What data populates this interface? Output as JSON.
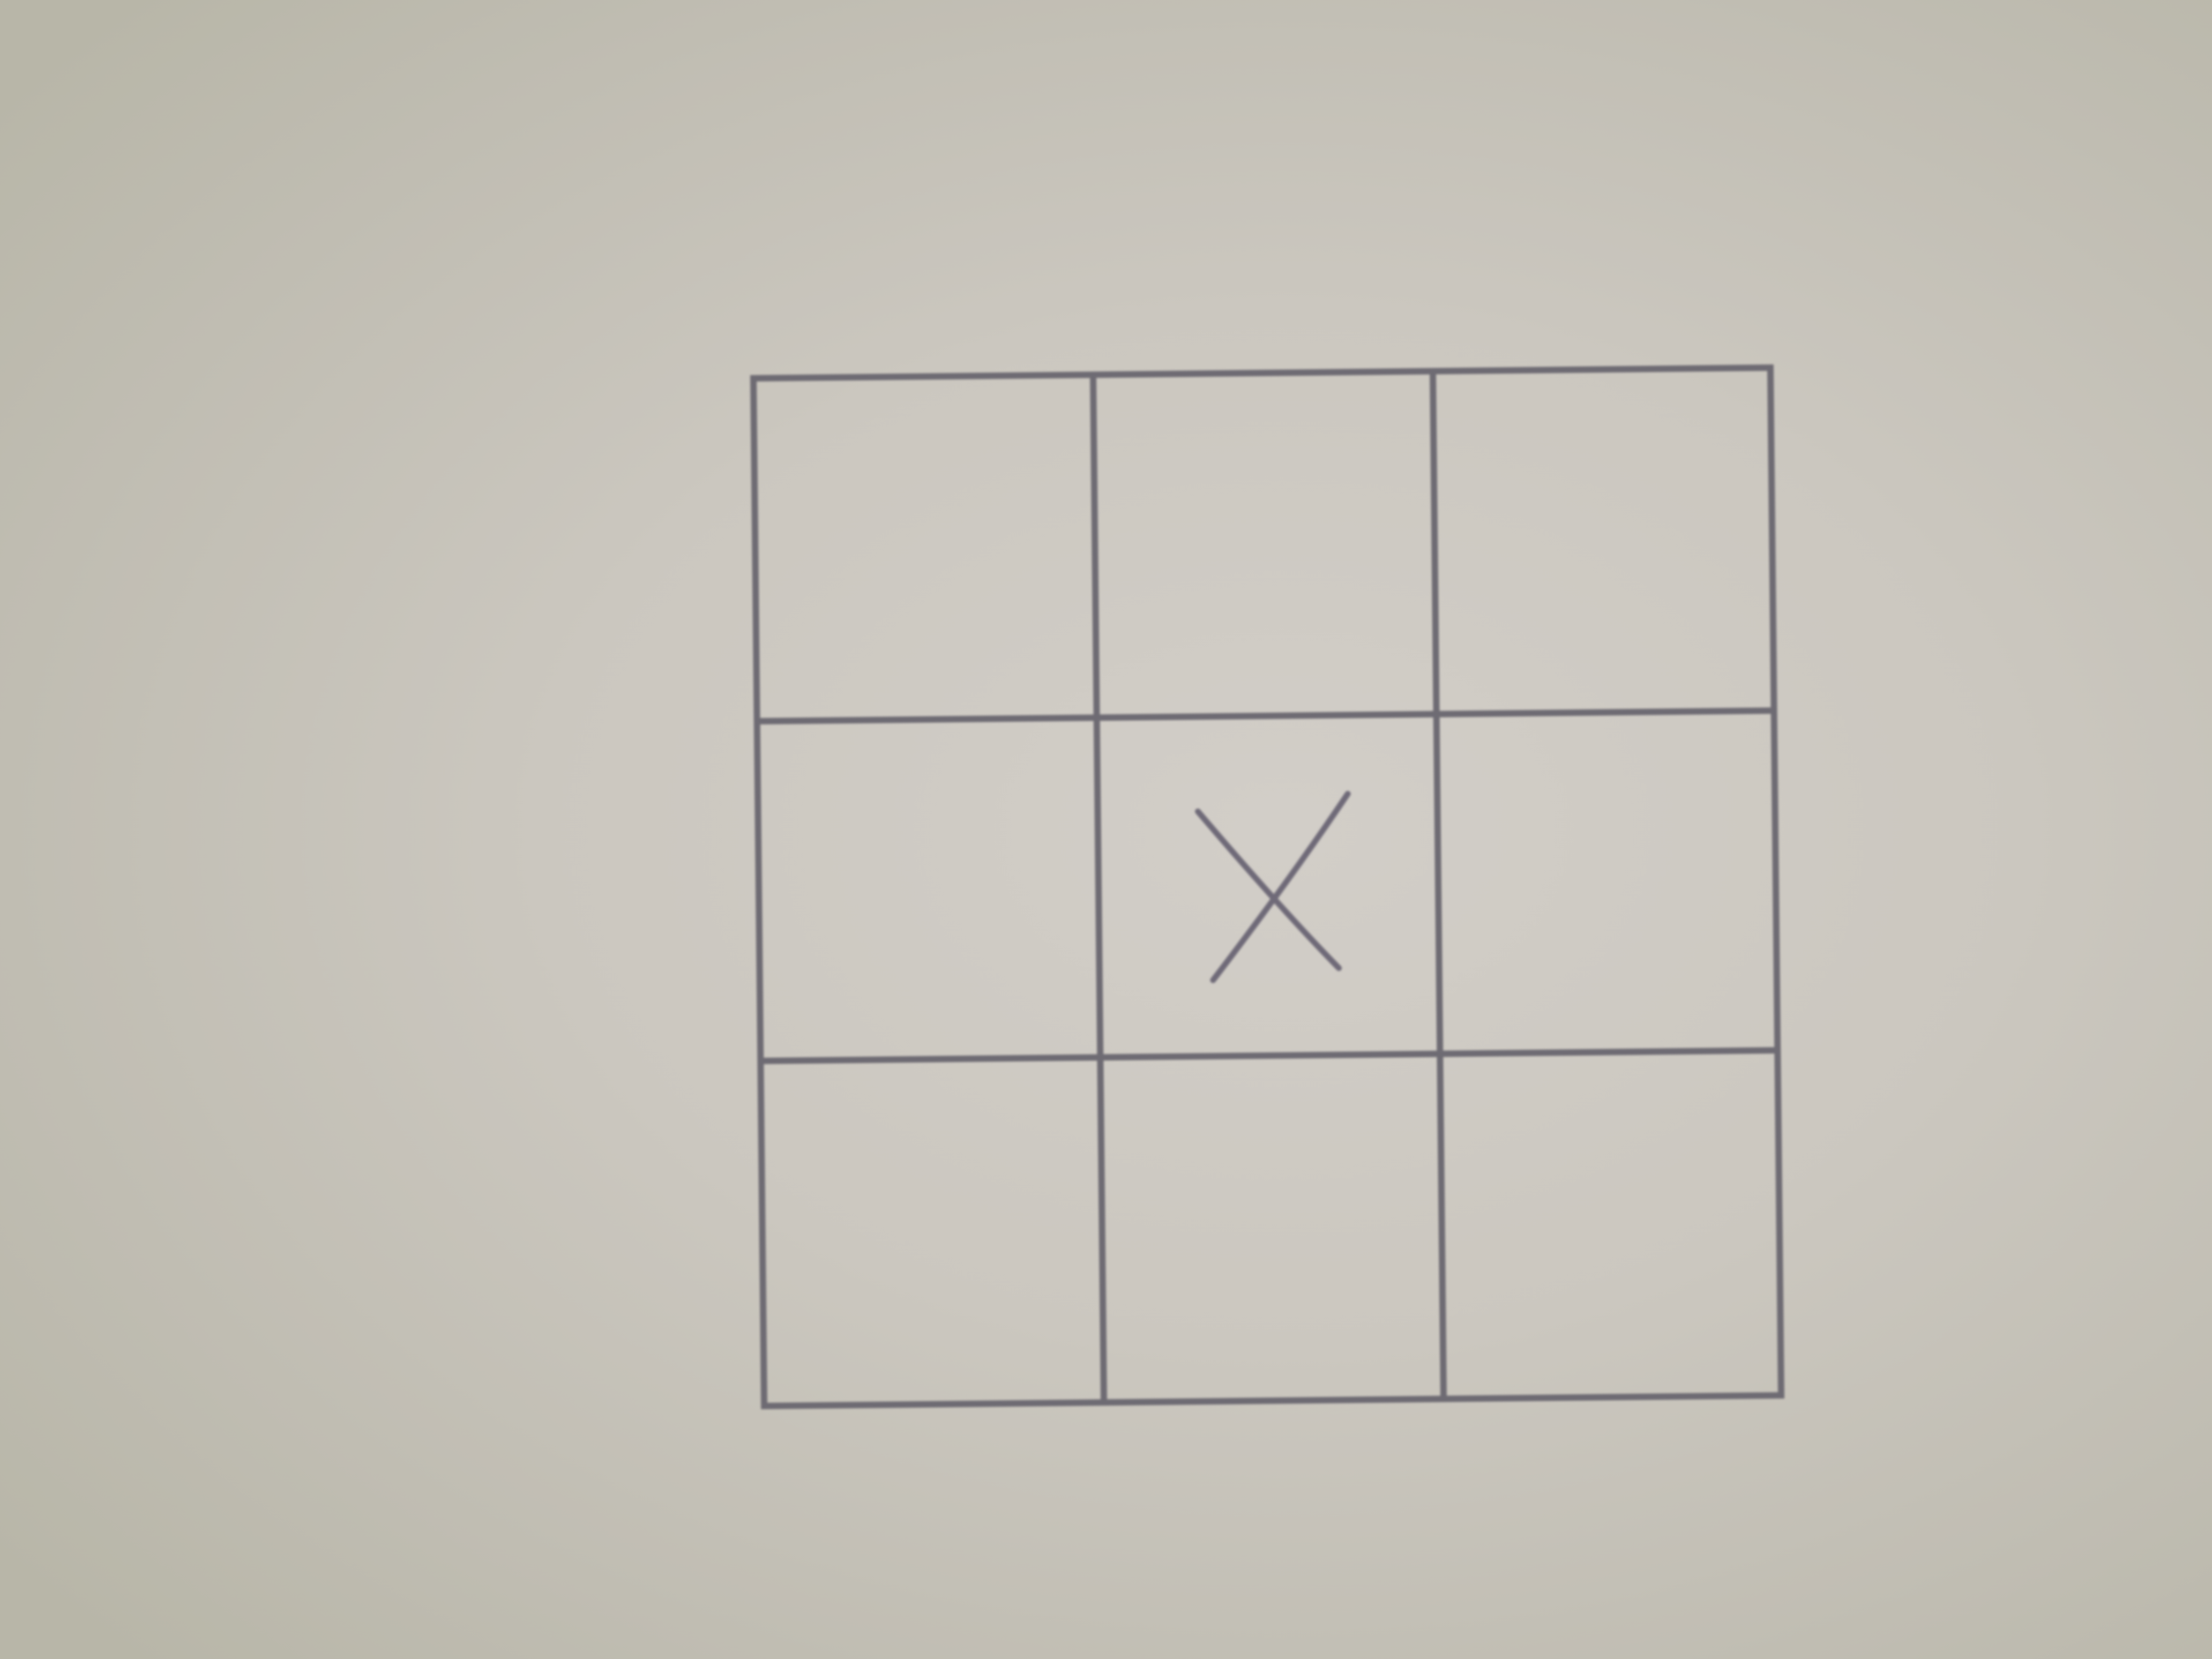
{
  "board": {
    "rows": 3,
    "cols": 3,
    "cells": [
      [
        "",
        "",
        ""
      ],
      [
        "",
        "X",
        ""
      ],
      [
        "",
        "",
        ""
      ]
    ]
  },
  "colors": {
    "paper": "#cdc9c1",
    "line": "#6e6b73",
    "mark": "#6f6a78"
  }
}
